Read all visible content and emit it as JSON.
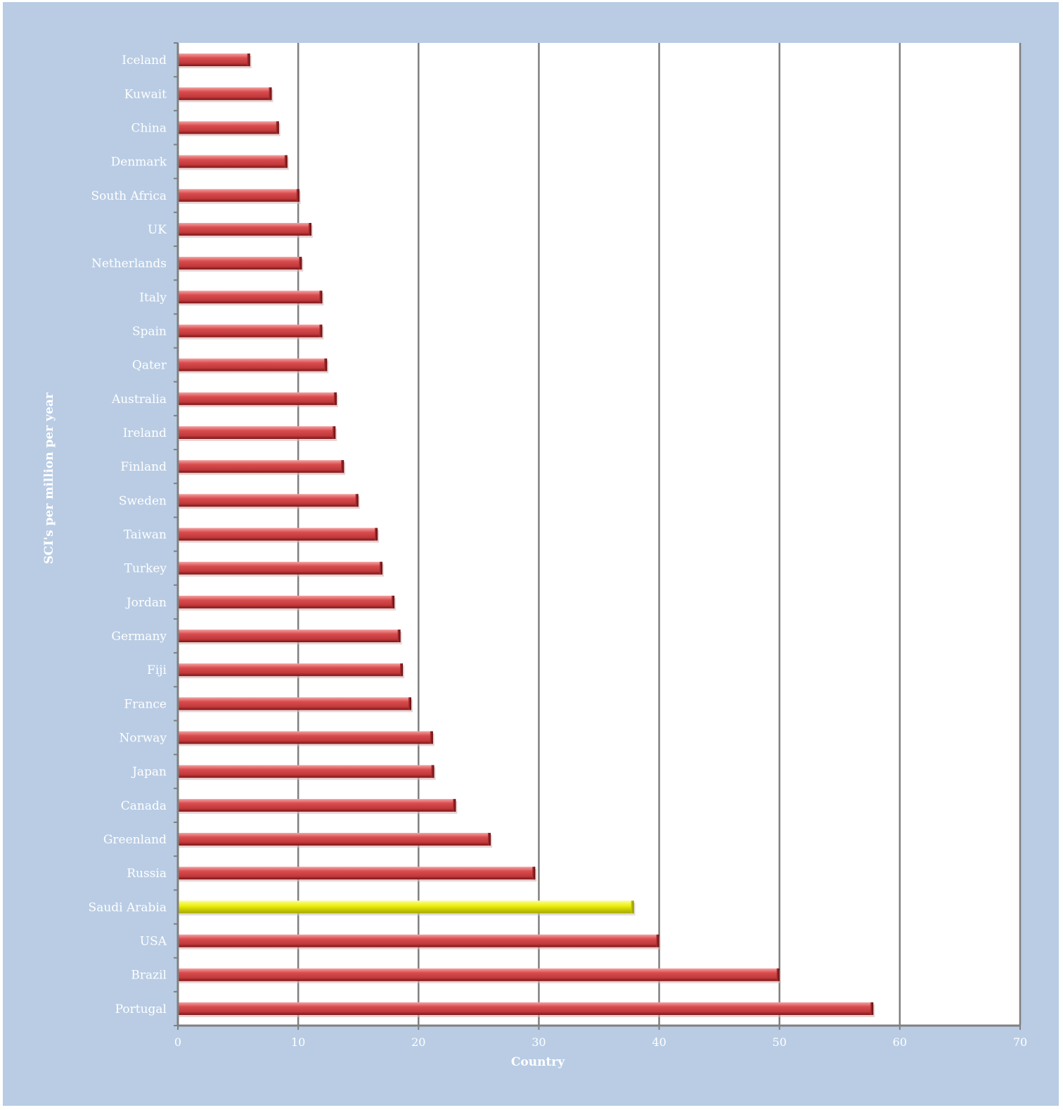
{
  "chart_data": {
    "type": "bar",
    "orientation": "horizontal",
    "title": "",
    "xlabel": "Country",
    "ylabel": "SCI's per million per year",
    "xlim": [
      0,
      70
    ],
    "x_ticks": [
      0,
      10,
      20,
      30,
      40,
      50,
      60,
      70
    ],
    "grid": true,
    "legend": "none",
    "bar_color": "#cc3b3e",
    "highlight_color": "#eef00c",
    "highlight_category": "Saudi Arabia",
    "plot_background": "#ffffff",
    "frame_background": "#b9cce4",
    "categories": [
      "Iceland",
      "Kuwait",
      "China",
      "Denmark",
      "South Africa",
      "UK",
      "Netherlands",
      "Italy",
      "Spain",
      "Qater",
      "Australia",
      "Ireland",
      "Finland",
      "Sweden",
      "Taiwan",
      "Turkey",
      "Jordan",
      "Germany",
      "Fiji",
      "France",
      "Norway",
      "Japan",
      "Canada",
      "Greenland",
      "Russia",
      "Saudi Arabia",
      "USA",
      "Brazil",
      "Portugal"
    ],
    "values": [
      6,
      7.8,
      8.4,
      9.1,
      10.1,
      11.1,
      10.3,
      12,
      12,
      12.4,
      13.2,
      13.1,
      13.8,
      15,
      16.6,
      17,
      18,
      18.5,
      18.7,
      19.4,
      21.2,
      21.3,
      23.1,
      26,
      29.7,
      37.9,
      40,
      50,
      57.8
    ]
  }
}
